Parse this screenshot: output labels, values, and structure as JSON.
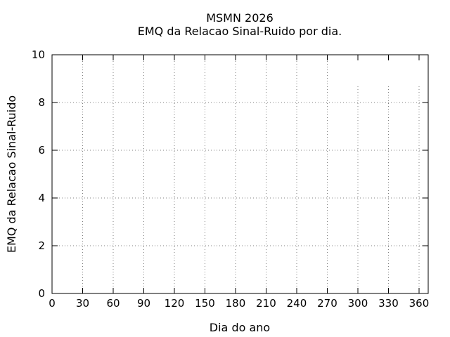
{
  "chart_data": {
    "type": "line",
    "title": "MSMN 2026",
    "subtitle": "EMQ da Relacao Sinal-Ruido por dia.",
    "xlabel": "Dia do ano",
    "ylabel": "EMQ da Relacao Sinal-Ruido",
    "xlim": [
      0,
      369
    ],
    "ylim": [
      0,
      10
    ],
    "xticks": [
      0,
      30,
      60,
      90,
      120,
      150,
      180,
      210,
      240,
      270,
      300,
      330,
      360
    ],
    "yticks": [
      0,
      2,
      4,
      6,
      8,
      10
    ],
    "grid": true,
    "grid_style": "dotted",
    "legend_position": "none",
    "series": [],
    "shortened_vertical_gridlines": {
      "x_values": [
        300,
        330,
        360
      ],
      "top_y_value": 8.68
    },
    "colors": {
      "axis": "#000000",
      "grid": "#808080",
      "text": "#000000",
      "background": "#ffffff"
    }
  }
}
